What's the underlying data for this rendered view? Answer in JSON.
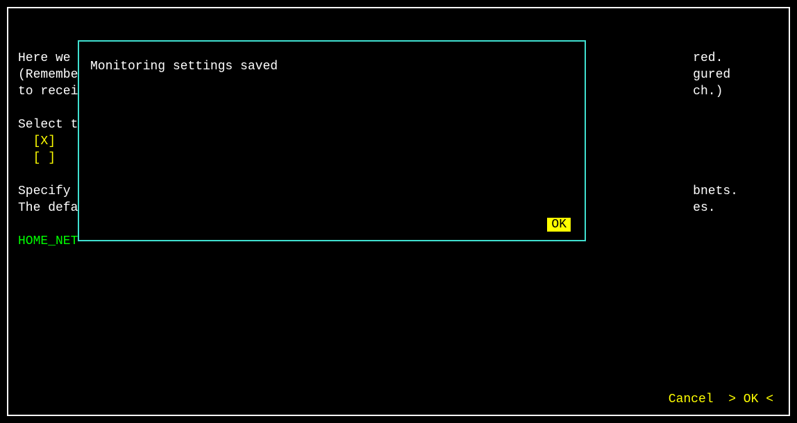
{
  "colors": {
    "bg": "#000000",
    "border": "#ffffff",
    "text": "#ffffff",
    "accent_yellow": "#ffff00",
    "accent_green": "#00ff00",
    "dialog_border": "#40e0d0"
  },
  "bg": {
    "line1_left": "Here we",
    "line1_right": "red.",
    "line2_left": "(Remembe",
    "line2_right": "gured",
    "line3_left": "to recei",
    "line3_right": "ch.)",
    "line5_left": "Select t",
    "line6_checkbox": "[X]",
    "line7_checkbox": "[ ]",
    "line9_left": "Specify",
    "line9_right": "bnets.",
    "line10_left": "The defa",
    "line10_right": "es.",
    "line12_label": "HOME_NET"
  },
  "dialog": {
    "message": "Monitoring settings saved",
    "ok_label": "OK"
  },
  "footer": {
    "cancel": "Cancel",
    "ok_wrapped": "> OK <"
  }
}
